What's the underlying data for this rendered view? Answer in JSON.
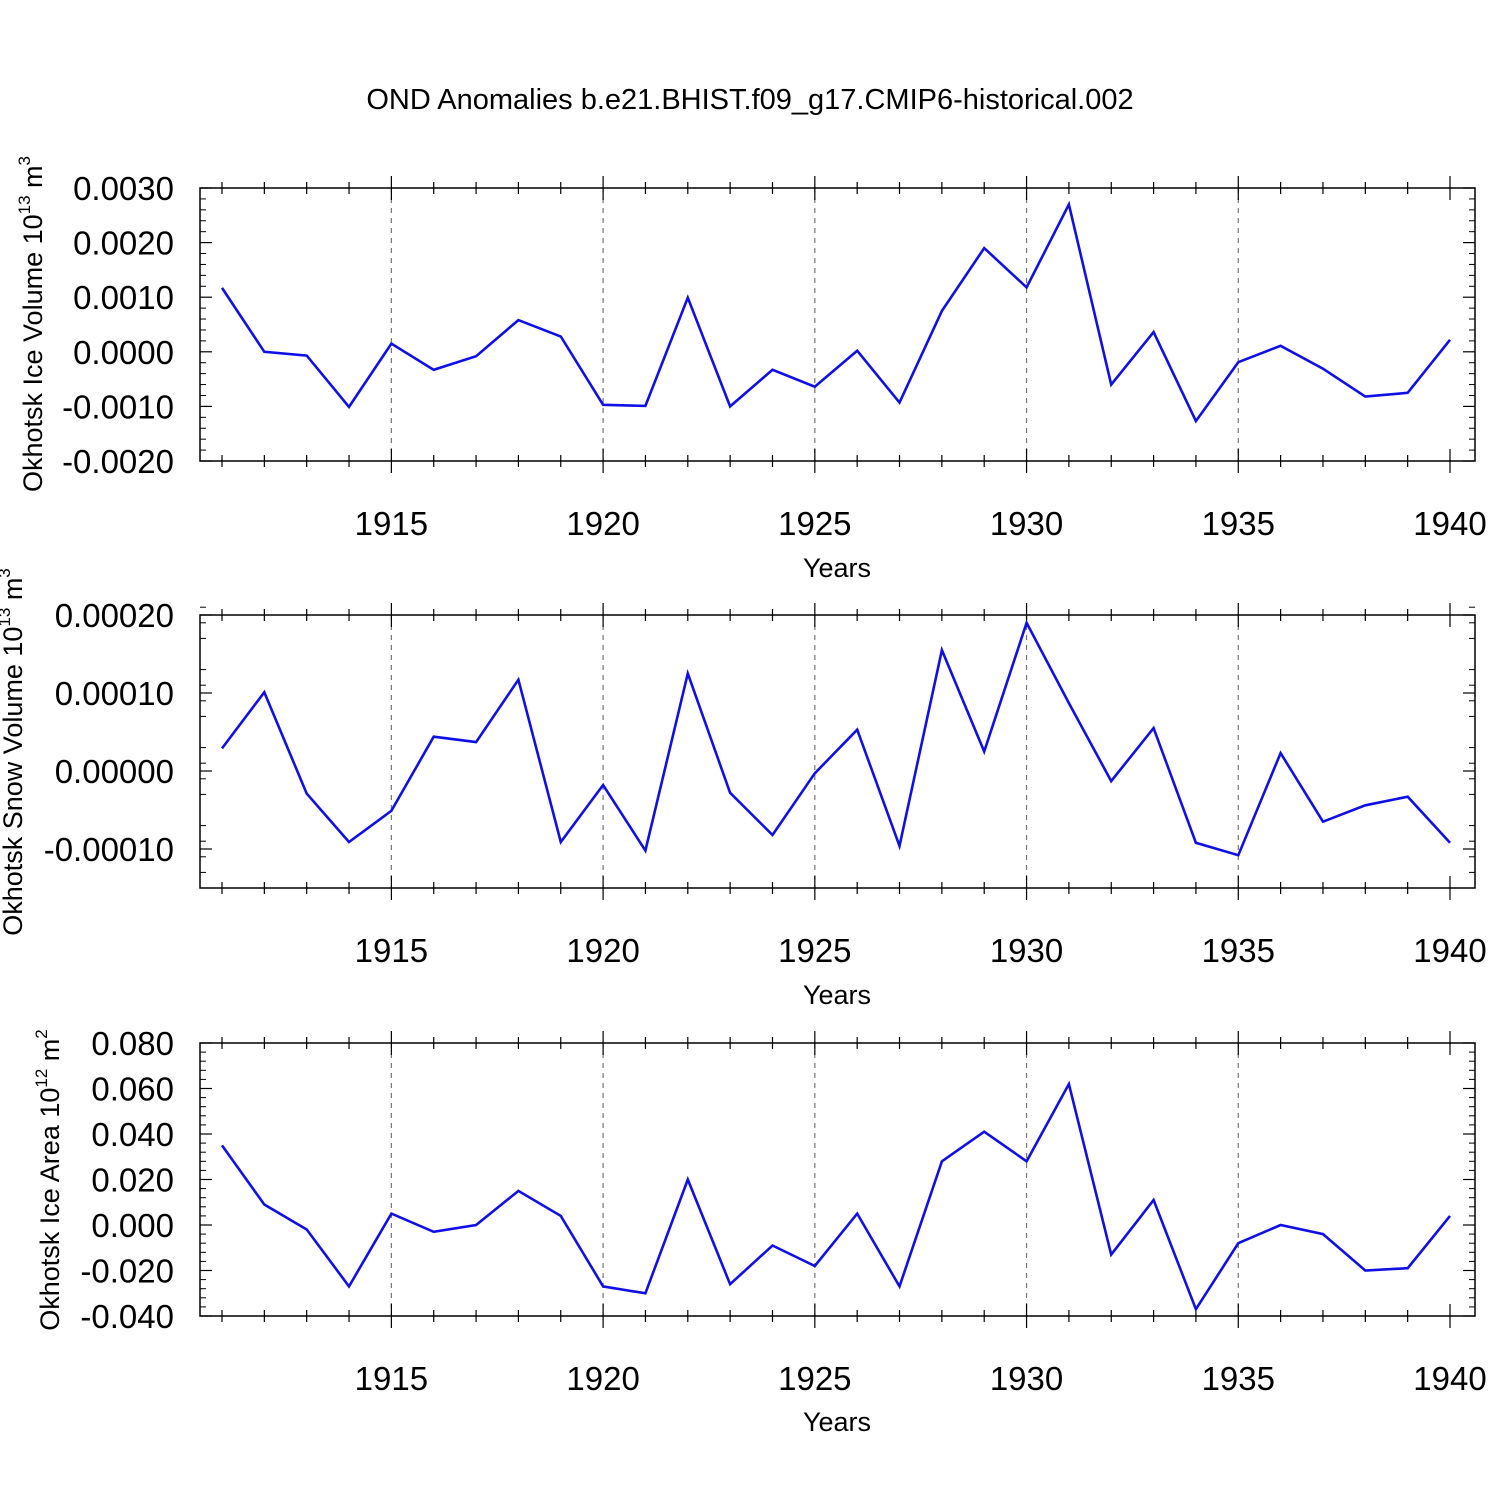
{
  "title": "OND Anomalies b.e21.BHIST.f09_g17.CMIP6-historical.002",
  "line_color": "#1010e6",
  "chart_data": [
    {
      "type": "line",
      "title": "OND Anomalies b.e21.BHIST.f09_g17.CMIP6-historical.002",
      "xlabel": "Years",
      "ylabel": "Okhotsk Ice Volume",
      "ylabel_unit_base": "10",
      "ylabel_unit_exp": "13",
      "ylabel_unit": "m",
      "ylabel_unit_unit_exp": "3",
      "xlim": [
        1911,
        1940
      ],
      "ylim": [
        -0.002,
        0.003
      ],
      "grid": "vertical dashed at major years",
      "x_ticks": [
        1915,
        1920,
        1925,
        1930,
        1935,
        1940
      ],
      "x_tick_labels": [
        "1915",
        "1920",
        "1925",
        "1930",
        "1935",
        "1940"
      ],
      "y_ticks": [
        0.003,
        0.002,
        0.001,
        0.0,
        -0.001,
        -0.002
      ],
      "y_tick_labels": [
        "0.0030",
        "0.0020",
        "0.0010",
        "0.0000",
        "-0.0010",
        "-0.0020"
      ],
      "x": [
        1911,
        1912,
        1913,
        1914,
        1915,
        1916,
        1917,
        1918,
        1919,
        1920,
        1921,
        1922,
        1923,
        1924,
        1925,
        1926,
        1927,
        1928,
        1929,
        1930,
        1931,
        1932,
        1933,
        1934,
        1935,
        1936,
        1937,
        1938,
        1939,
        1940
      ],
      "values": [
        0.00117,
        0.0,
        -7e-05,
        -0.00101,
        0.00015,
        -0.00033,
        -8e-05,
        0.00058,
        0.00028,
        -0.00097,
        -0.00099,
        0.00099,
        -0.001,
        -0.00033,
        -0.00064,
        2e-05,
        -0.00093,
        0.00075,
        0.0019,
        0.00118,
        0.0027,
        -0.0006,
        0.00036,
        -0.00127,
        -0.00019,
        0.00011,
        -0.00031,
        -0.00082,
        -0.00075,
        0.00022
      ]
    },
    {
      "type": "line",
      "xlabel": "Years",
      "ylabel": "Okhotsk Snow Volume",
      "ylabel_unit_base": "10",
      "ylabel_unit_exp": "13",
      "ylabel_unit": "m",
      "ylabel_unit_unit_exp": "3",
      "xlim": [
        1911,
        1940
      ],
      "ylim": [
        -0.00015,
        0.0002
      ],
      "grid": "vertical dashed at major years",
      "x_ticks": [
        1915,
        1920,
        1925,
        1930,
        1935,
        1940
      ],
      "x_tick_labels": [
        "1915",
        "1920",
        "1925",
        "1930",
        "1935",
        "1940"
      ],
      "y_ticks": [
        0.0002,
        0.0001,
        0.0,
        -0.0001
      ],
      "y_tick_labels": [
        "0.00020",
        "0.00010",
        "0.00000",
        "-0.00010"
      ],
      "x": [
        1911,
        1912,
        1913,
        1914,
        1915,
        1916,
        1917,
        1918,
        1919,
        1920,
        1921,
        1922,
        1923,
        1924,
        1925,
        1926,
        1927,
        1928,
        1929,
        1930,
        1931,
        1932,
        1933,
        1934,
        1935,
        1936,
        1937,
        1938,
        1939,
        1940
      ],
      "values": [
        2.9e-05,
        0.000101,
        -2.9e-05,
        -9.1e-05,
        -5.1e-05,
        4.4e-05,
        3.7e-05,
        0.000117,
        -9.1e-05,
        -1.8e-05,
        -0.000102,
        0.000125,
        -2.8e-05,
        -8.2e-05,
        -3e-06,
        5.3e-05,
        -9.6e-05,
        0.000155,
        2.5e-05,
        0.00019,
        8.7e-05,
        -1.3e-05,
        5.5e-05,
        -9.2e-05,
        -0.000108,
        2.3e-05,
        -6.5e-05,
        -4.4e-05,
        -3.3e-05,
        -9.2e-05
      ]
    },
    {
      "type": "line",
      "xlabel": "Years",
      "ylabel": "Okhotsk Ice Area",
      "ylabel_unit_base": "10",
      "ylabel_unit_exp": "12",
      "ylabel_unit": "m",
      "ylabel_unit_unit_exp": "2",
      "xlim": [
        1911,
        1940
      ],
      "ylim": [
        -0.04,
        0.08
      ],
      "grid": "vertical dashed at major years",
      "x_ticks": [
        1915,
        1920,
        1925,
        1930,
        1935,
        1940
      ],
      "x_tick_labels": [
        "1915",
        "1920",
        "1925",
        "1930",
        "1935",
        "1940"
      ],
      "y_ticks": [
        0.08,
        0.06,
        0.04,
        0.02,
        0.0,
        -0.02,
        -0.04
      ],
      "y_tick_labels": [
        "0.080",
        "0.060",
        "0.040",
        "0.020",
        "0.000",
        "-0.020",
        "-0.040"
      ],
      "x": [
        1911,
        1912,
        1913,
        1914,
        1915,
        1916,
        1917,
        1918,
        1919,
        1920,
        1921,
        1922,
        1923,
        1924,
        1925,
        1926,
        1927,
        1928,
        1929,
        1930,
        1931,
        1932,
        1933,
        1934,
        1935,
        1936,
        1937,
        1938,
        1939,
        1940
      ],
      "values": [
        0.035,
        0.009,
        -0.002,
        -0.027,
        0.005,
        -0.003,
        0.0,
        0.015,
        0.004,
        -0.027,
        -0.03,
        0.02,
        -0.026,
        -0.009,
        -0.018,
        0.005,
        -0.027,
        0.028,
        0.041,
        0.028,
        0.062,
        -0.013,
        0.011,
        -0.037,
        -0.008,
        0.0,
        -0.004,
        -0.02,
        -0.019,
        0.004
      ]
    }
  ]
}
